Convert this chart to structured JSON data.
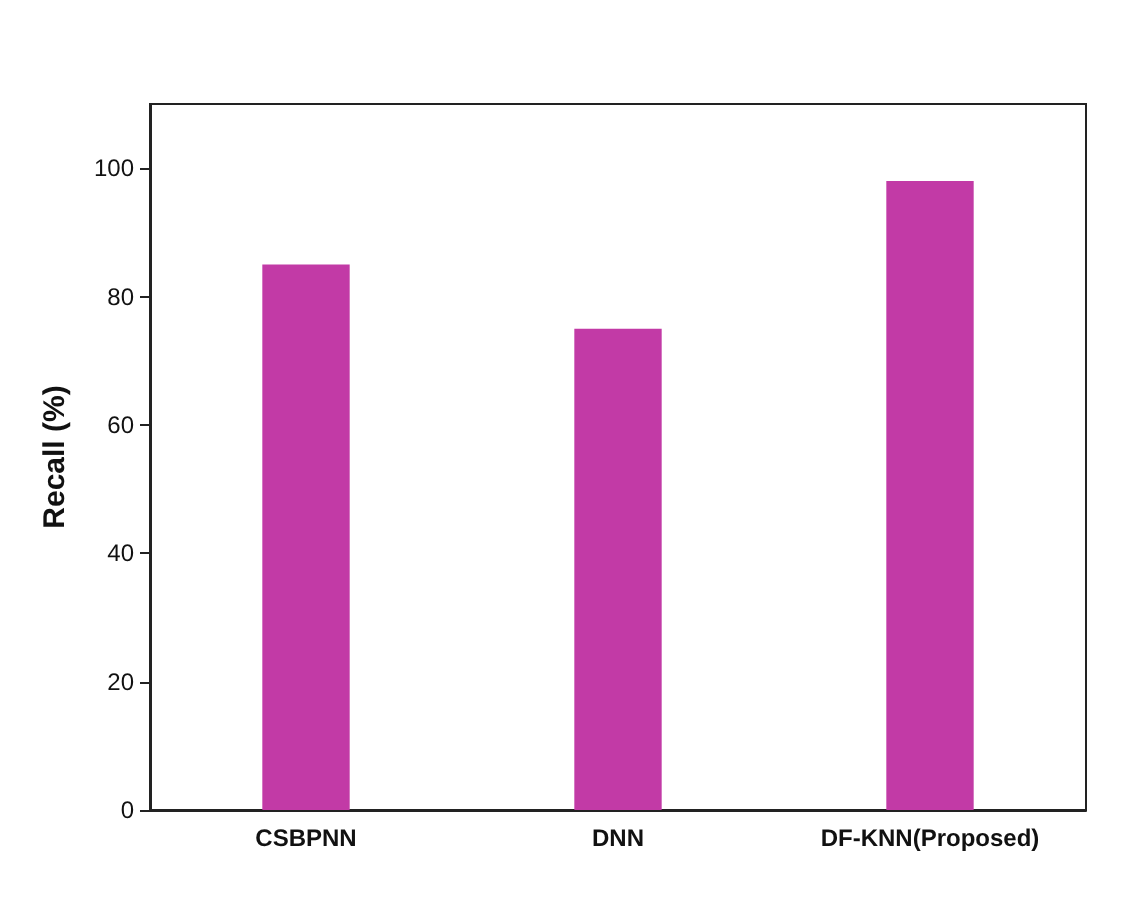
{
  "chart_data": {
    "type": "bar",
    "ylabel": "Recall (%)",
    "categories": [
      "CSBPNN",
      "DNN",
      "DF-KNN(Proposed)"
    ],
    "values": [
      85,
      75,
      98
    ],
    "color": "#c23aa6",
    "ylim": [
      0,
      110
    ],
    "yticks": [
      0,
      20,
      40,
      60,
      80,
      100
    ],
    "grid": false
  }
}
